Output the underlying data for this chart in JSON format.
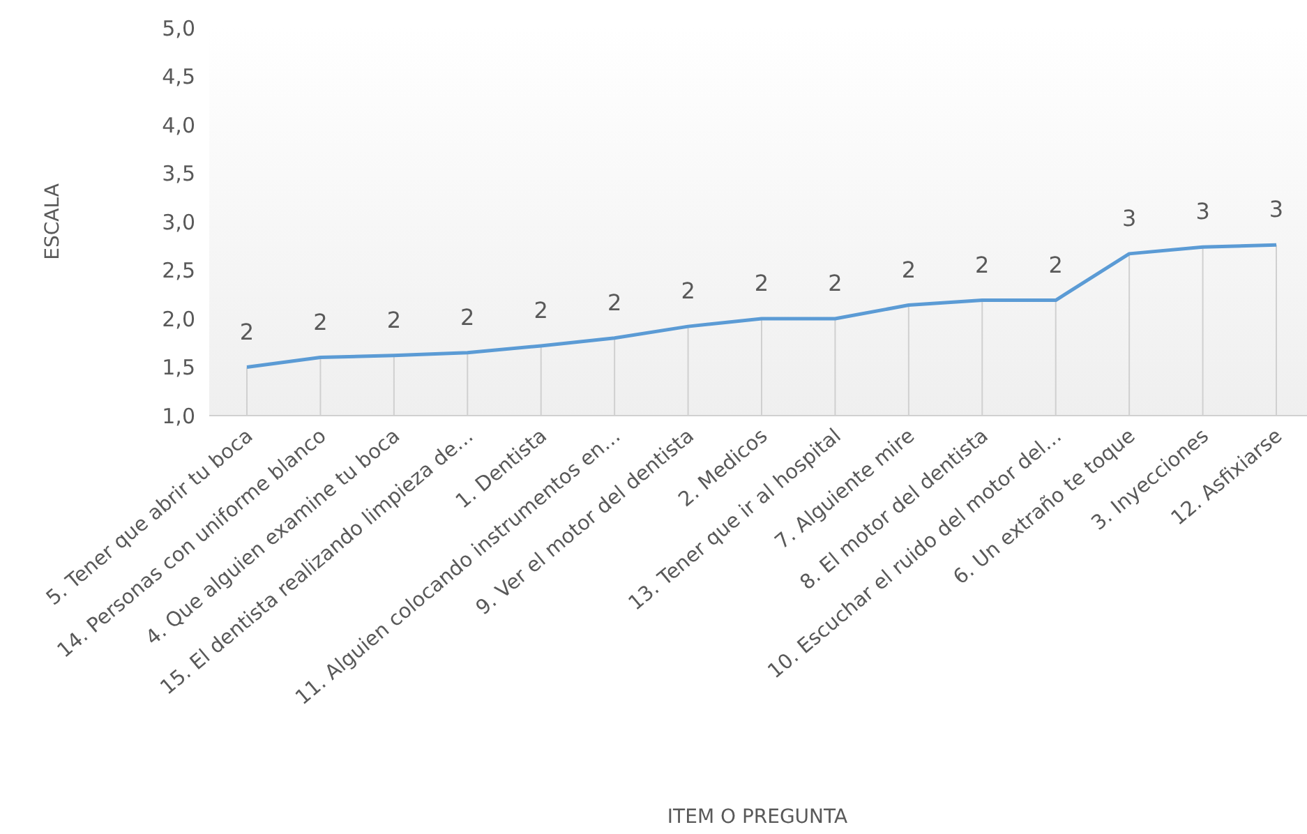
{
  "chart_data": {
    "type": "line",
    "xlabel": "ITEM O PREGUNTA",
    "ylabel": "ESCALA",
    "categories": [
      "5. Tener que abrir tu boca",
      "14. Personas con uniforme blanco",
      "4. Que alguien examine tu boca",
      "15. El dentista realizando limpieza de…",
      "1. Dentista",
      "11. Alguien colocando instrumentos en…",
      "9. Ver el motor del dentista",
      "2. Medicos",
      "13. Tener que ir al hospital",
      "7. Alguiente mire",
      "8. El motor del dentista",
      "10. Escuchar el ruido del motor del…",
      "6. Un extraño te toque",
      "3. Inyecciones",
      "12. Asfixiarse"
    ],
    "series": [
      {
        "color": "#5b9bd5",
        "values": [
          1.5,
          1.6,
          1.62,
          1.65,
          1.72,
          1.8,
          1.92,
          2.0,
          2.0,
          2.14,
          2.19,
          2.19,
          2.67,
          2.74,
          2.76
        ],
        "value_labels": [
          "2",
          "2",
          "2",
          "2",
          "2",
          "2",
          "2",
          "2",
          "2",
          "2",
          "2",
          "2",
          "3",
          "3",
          "3"
        ]
      }
    ],
    "ylim": [
      1,
      5
    ],
    "yticks": [
      {
        "value": 1,
        "label": "1,0"
      },
      {
        "value": 1.5,
        "label": "1,5"
      },
      {
        "value": 2,
        "label": "2,0"
      },
      {
        "value": 2.5,
        "label": "2,5"
      },
      {
        "value": 3,
        "label": "3,0"
      },
      {
        "value": 3.5,
        "label": "3,5"
      },
      {
        "value": 4,
        "label": "4,0"
      },
      {
        "value": 4.5,
        "label": "4,5"
      },
      {
        "value": 5,
        "label": "5,0"
      }
    ],
    "marker": "none",
    "line_style": "solid"
  }
}
